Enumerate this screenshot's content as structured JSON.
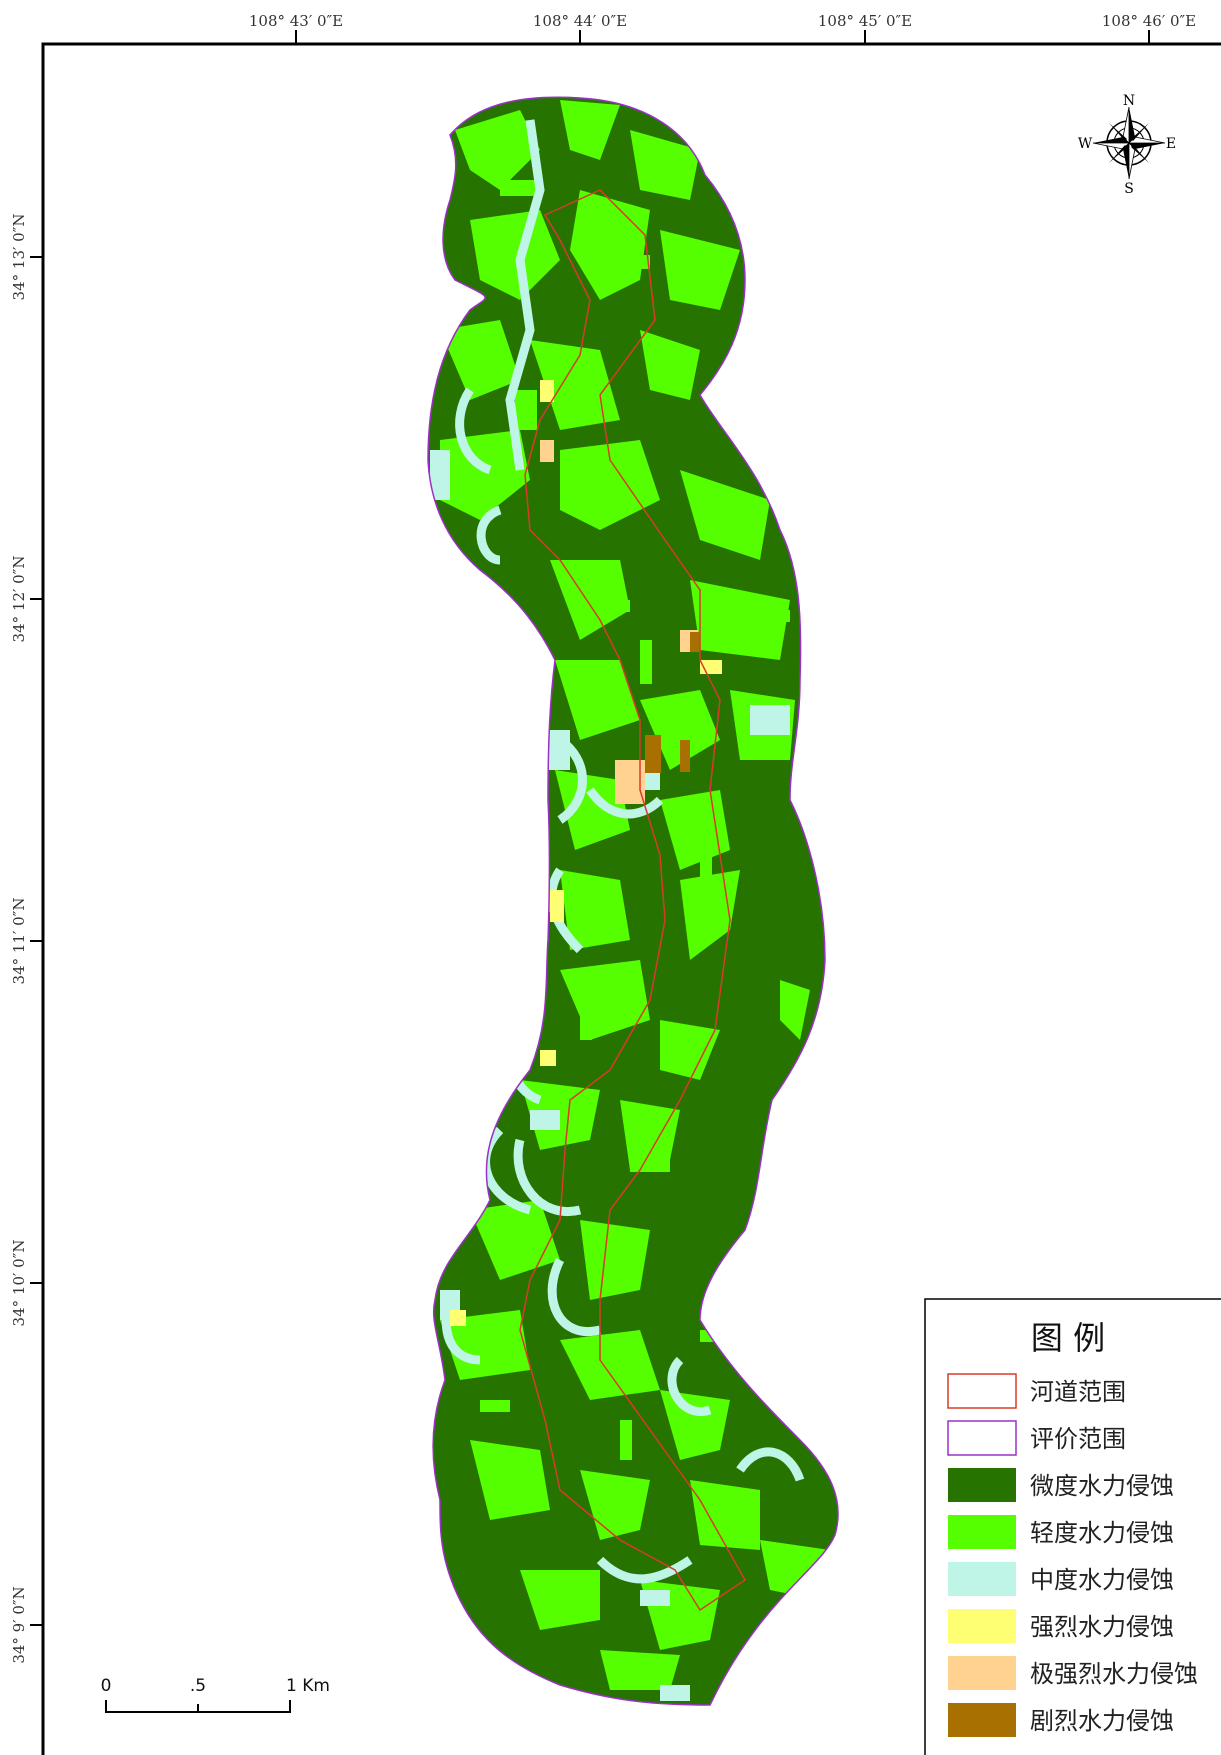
{
  "graticule": {
    "longitude_labels": [
      "108° 43′ 0″E",
      "108° 44′ 0″E",
      "108° 45′ 0″E",
      "108° 46′ 0″E"
    ],
    "latitude_labels": [
      "34° 13′ 0″N",
      "34° 12′ 0″N",
      "34° 11′ 0″N",
      "34° 10′ 0″N",
      "34° 9′ 0″N"
    ]
  },
  "compass": {
    "north": "N",
    "south": "S",
    "east": "E",
    "west": "W"
  },
  "scale_bar": {
    "labels": [
      "0",
      ".5",
      "1 Km"
    ]
  },
  "legend": {
    "title": "图 例",
    "items": [
      {
        "label": "河道范围",
        "type": "outline",
        "color": "#d93a2b"
      },
      {
        "label": "评价范围",
        "type": "outline",
        "color": "#9b30c8"
      },
      {
        "label": "微度水力侵蚀",
        "type": "fill",
        "color": "#267300"
      },
      {
        "label": "轻度水力侵蚀",
        "type": "fill",
        "color": "#55ff00"
      },
      {
        "label": "中度水力侵蚀",
        "type": "fill",
        "color": "#bef5e6"
      },
      {
        "label": "强烈水力侵蚀",
        "type": "fill",
        "color": "#ffff73"
      },
      {
        "label": "极强烈水力侵蚀",
        "type": "fill",
        "color": "#ffd38f"
      },
      {
        "label": "剧烈水力侵蚀",
        "type": "fill",
        "color": "#a87000"
      }
    ]
  }
}
